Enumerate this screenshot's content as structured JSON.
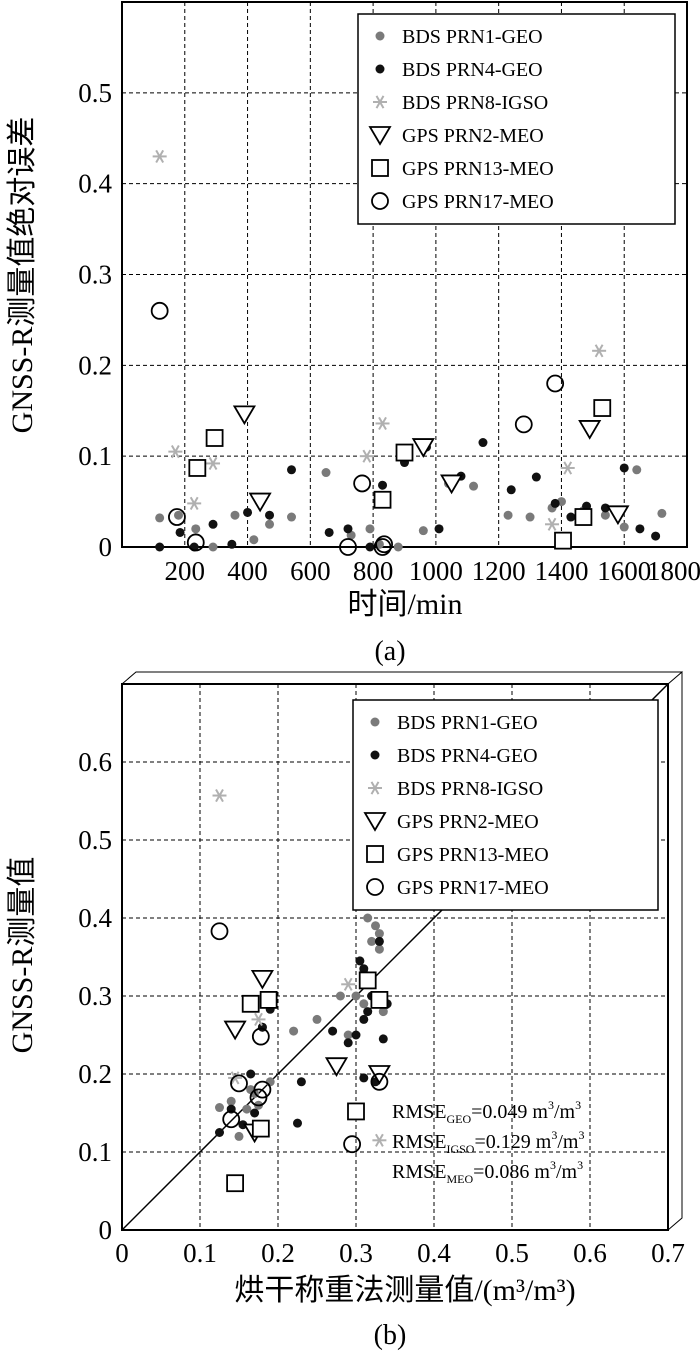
{
  "colors": {
    "bds1": "#7a7a7a",
    "bds4": "#111111",
    "bds8": "#b0b0b0",
    "gps": "#000000"
  },
  "series_legend": [
    {
      "key": "bds1",
      "label": "BDS PRN1-GEO",
      "marker": "dot",
      "color": "#7a7a7a"
    },
    {
      "key": "bds4",
      "label": "BDS PRN4-GEO",
      "marker": "dot",
      "color": "#111111"
    },
    {
      "key": "bds8",
      "label": "BDS PRN8-IGSO",
      "marker": "star",
      "color": "#b0b0b0"
    },
    {
      "key": "gps2",
      "label": "GPS PRN2-MEO",
      "marker": "triangle",
      "color": "#000000"
    },
    {
      "key": "gps13",
      "label": "GPS PRN13-MEO",
      "marker": "square",
      "color": "#000000"
    },
    {
      "key": "gps17",
      "label": "GPS PRN17-MEO",
      "marker": "circle",
      "color": "#000000"
    }
  ],
  "chart_data": [
    {
      "panel_label": "(a)",
      "type": "scatter",
      "title": "",
      "xlabel": "时间/min",
      "ylabel": "GNSS-R测量值绝对误差",
      "xlim": [
        0,
        1800
      ],
      "ylim": [
        0,
        0.6
      ],
      "xticks": [
        200,
        400,
        600,
        800,
        1000,
        1200,
        1400,
        1600,
        1800
      ],
      "xtick_labels": [
        "200",
        "400",
        "600",
        "800",
        "1000",
        "1200",
        "1400",
        "1600",
        "1800"
      ],
      "yticks": [
        0,
        0.1,
        0.2,
        0.3,
        0.4,
        0.5
      ],
      "ytick_labels": [
        "0",
        "0.1",
        "0.2",
        "0.3",
        "0.4",
        "0.5"
      ],
      "grid": true,
      "legend_position": "top-right",
      "series": [
        {
          "name": "BDS PRN1-GEO",
          "marker": "dot",
          "points": [
            [
              120,
              0.032
            ],
            [
              180,
              0.035
            ],
            [
              235,
              0.02
            ],
            [
              290,
              0.0
            ],
            [
              360,
              0.035
            ],
            [
              420,
              0.008
            ],
            [
              470,
              0.025
            ],
            [
              540,
              0.033
            ],
            [
              650,
              0.082
            ],
            [
              730,
              0.013
            ],
            [
              790,
              0.02
            ],
            [
              820,
              0.003
            ],
            [
              880,
              0.0
            ],
            [
              960,
              0.018
            ],
            [
              1040,
              0.07
            ],
            [
              1120,
              0.067
            ],
            [
              1230,
              0.035
            ],
            [
              1300,
              0.033
            ],
            [
              1370,
              0.043
            ],
            [
              1400,
              0.05
            ],
            [
              1470,
              0.04
            ],
            [
              1540,
              0.035
            ],
            [
              1600,
              0.022
            ],
            [
              1640,
              0.085
            ],
            [
              1720,
              0.037
            ]
          ]
        },
        {
          "name": "BDS PRN4-GEO",
          "marker": "dot",
          "points": [
            [
              120,
              0.0
            ],
            [
              185,
              0.016
            ],
            [
              230,
              0.0
            ],
            [
              290,
              0.025
            ],
            [
              350,
              0.003
            ],
            [
              400,
              0.038
            ],
            [
              470,
              0.035
            ],
            [
              540,
              0.085
            ],
            [
              660,
              0.016
            ],
            [
              720,
              0.02
            ],
            [
              790,
              0.0
            ],
            [
              830,
              0.068
            ],
            [
              900,
              0.093
            ],
            [
              970,
              0.11
            ],
            [
              1010,
              0.02
            ],
            [
              1080,
              0.078
            ],
            [
              1150,
              0.115
            ],
            [
              1240,
              0.063
            ],
            [
              1320,
              0.077
            ],
            [
              1380,
              0.048
            ],
            [
              1430,
              0.033
            ],
            [
              1480,
              0.045
            ],
            [
              1540,
              0.043
            ],
            [
              1600,
              0.087
            ],
            [
              1650,
              0.02
            ],
            [
              1700,
              0.012
            ]
          ]
        },
        {
          "name": "BDS PRN8-IGSO",
          "marker": "star",
          "points": [
            [
              120,
              0.43
            ],
            [
              170,
              0.105
            ],
            [
              230,
              0.048
            ],
            [
              290,
              0.092
            ],
            [
              780,
              0.1
            ],
            [
              830,
              0.136
            ],
            [
              1370,
              0.025
            ],
            [
              1420,
              0.087
            ],
            [
              1520,
              0.216
            ]
          ]
        },
        {
          "name": "GPS PRN2-MEO",
          "marker": "triangle",
          "points": [
            [
              390,
              0.146
            ],
            [
              440,
              0.05
            ],
            [
              960,
              0.11
            ],
            [
              1050,
              0.07
            ],
            [
              1490,
              0.13
            ],
            [
              1580,
              0.036
            ]
          ]
        },
        {
          "name": "GPS PRN13-MEO",
          "marker": "square",
          "points": [
            [
              240,
              0.087
            ],
            [
              295,
              0.12
            ],
            [
              830,
              0.052
            ],
            [
              900,
              0.104
            ],
            [
              1405,
              0.007
            ],
            [
              1470,
              0.033
            ],
            [
              1530,
              0.153
            ]
          ]
        },
        {
          "name": "GPS PRN17-MEO",
          "marker": "circle",
          "points": [
            [
              120,
              0.26
            ],
            [
              175,
              0.033
            ],
            [
              235,
              0.005
            ],
            [
              720,
              0.0
            ],
            [
              765,
              0.07
            ],
            [
              830,
              0.0
            ],
            [
              835,
              0.003
            ],
            [
              1280,
              0.135
            ],
            [
              1380,
              0.18
            ]
          ]
        }
      ]
    },
    {
      "panel_label": "(b)",
      "type": "scatter",
      "title": "",
      "xlabel": "烘干称重法测量值/(m³/m³)",
      "ylabel": "GNSS-R测量值",
      "xlim": [
        0,
        0.7
      ],
      "ylim": [
        0,
        0.7
      ],
      "xticks": [
        0,
        0.1,
        0.2,
        0.3,
        0.4,
        0.5,
        0.6,
        0.7
      ],
      "xtick_labels": [
        "0",
        "0.1",
        "0.2",
        "0.3",
        "0.4",
        "0.5",
        "0.6",
        "0.7"
      ],
      "yticks": [
        0,
        0.1,
        0.2,
        0.3,
        0.4,
        0.5,
        0.6
      ],
      "ytick_labels": [
        "0",
        "0.1",
        "0.2",
        "0.3",
        "0.4",
        "0.5",
        "0.6"
      ],
      "grid": true,
      "reference_line": "1:1",
      "legend_position": "top-right",
      "rmse": [
        {
          "prefix": "RMSE",
          "sub": "GEO",
          "value": "=0.049 m",
          "mid": "/m",
          "tail": ""
        },
        {
          "prefix": "RMSE",
          "sub": "IGSO",
          "value": "=0.129 m",
          "mid": "/m",
          "tail": ""
        },
        {
          "prefix": "RMSE",
          "sub": "MEO",
          "value": "=0.086 m",
          "mid": "/m",
          "tail": ""
        }
      ],
      "rmse_sup": "3",
      "series": [
        {
          "name": "BDS PRN1-GEO",
          "marker": "dot",
          "points": [
            [
              0.125,
              0.157
            ],
            [
              0.14,
              0.165
            ],
            [
              0.15,
              0.12
            ],
            [
              0.16,
              0.155
            ],
            [
              0.165,
              0.18
            ],
            [
              0.17,
              0.175
            ],
            [
              0.175,
              0.16
            ],
            [
              0.18,
              0.26
            ],
            [
              0.19,
              0.19
            ],
            [
              0.22,
              0.255
            ],
            [
              0.25,
              0.27
            ],
            [
              0.28,
              0.3
            ],
            [
              0.29,
              0.25
            ],
            [
              0.3,
              0.3
            ],
            [
              0.31,
              0.29
            ],
            [
              0.31,
              0.33
            ],
            [
              0.315,
              0.4
            ],
            [
              0.32,
              0.37
            ],
            [
              0.325,
              0.39
            ],
            [
              0.33,
              0.38
            ],
            [
              0.33,
              0.36
            ],
            [
              0.335,
              0.28
            ]
          ]
        },
        {
          "name": "BDS PRN4-GEO",
          "marker": "dot",
          "points": [
            [
              0.125,
              0.125
            ],
            [
              0.14,
              0.155
            ],
            [
              0.155,
              0.135
            ],
            [
              0.165,
              0.2
            ],
            [
              0.17,
              0.15
            ],
            [
              0.18,
              0.26
            ],
            [
              0.19,
              0.283
            ],
            [
              0.23,
              0.19
            ],
            [
              0.225,
              0.137
            ],
            [
              0.27,
              0.255
            ],
            [
              0.29,
              0.24
            ],
            [
              0.3,
              0.25
            ],
            [
              0.305,
              0.345
            ],
            [
              0.31,
              0.335
            ],
            [
              0.31,
              0.27
            ],
            [
              0.31,
              0.195
            ],
            [
              0.315,
              0.28
            ],
            [
              0.32,
              0.3
            ],
            [
              0.33,
              0.37
            ],
            [
              0.335,
              0.245
            ],
            [
              0.325,
              0.19
            ],
            [
              0.34,
              0.29
            ]
          ]
        },
        {
          "name": "BDS PRN8-IGSO",
          "marker": "star",
          "points": [
            [
              0.125,
              0.557
            ],
            [
              0.145,
              0.195
            ],
            [
              0.175,
              0.27
            ],
            [
              0.29,
              0.315
            ],
            [
              0.33,
              0.115
            ]
          ]
        },
        {
          "name": "GPS PRN2-MEO",
          "marker": "triangle",
          "points": [
            [
              0.145,
              0.257
            ],
            [
              0.17,
              0.125
            ],
            [
              0.18,
              0.322
            ],
            [
              0.275,
              0.21
            ],
            [
              0.33,
              0.2
            ]
          ]
        },
        {
          "name": "GPS PRN13-MEO",
          "marker": "square",
          "points": [
            [
              0.145,
              0.06
            ],
            [
              0.165,
              0.29
            ],
            [
              0.178,
              0.13
            ],
            [
              0.188,
              0.295
            ],
            [
              0.3,
              0.152
            ],
            [
              0.315,
              0.32
            ],
            [
              0.33,
              0.295
            ]
          ]
        },
        {
          "name": "GPS PRN17-MEO",
          "marker": "circle",
          "points": [
            [
              0.125,
              0.383
            ],
            [
              0.14,
              0.142
            ],
            [
              0.15,
              0.188
            ],
            [
              0.178,
              0.248
            ],
            [
              0.18,
              0.18
            ],
            [
              0.175,
              0.17
            ],
            [
              0.295,
              0.11
            ],
            [
              0.33,
              0.19
            ]
          ]
        }
      ]
    }
  ]
}
